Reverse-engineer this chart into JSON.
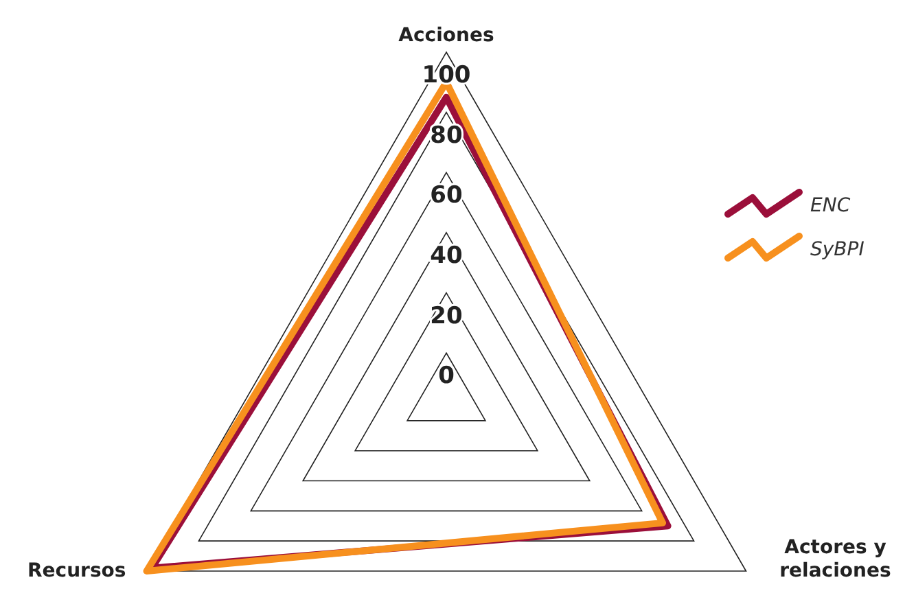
{
  "chart_data": {
    "type": "radar",
    "categories": [
      "Acciones",
      "Actores y relaciones",
      "Recursos"
    ],
    "series": [
      {
        "name": "ENC",
        "color": "#9b0f3a",
        "values": [
          85,
          70,
          98
        ]
      },
      {
        "name": "SyBPI",
        "color": "#f7901e",
        "values": [
          90,
          68,
          100
        ]
      }
    ],
    "ylim": [
      -15,
      100
    ],
    "yticks": [
      0,
      20,
      40,
      60,
      80,
      100
    ],
    "legend": "right"
  }
}
